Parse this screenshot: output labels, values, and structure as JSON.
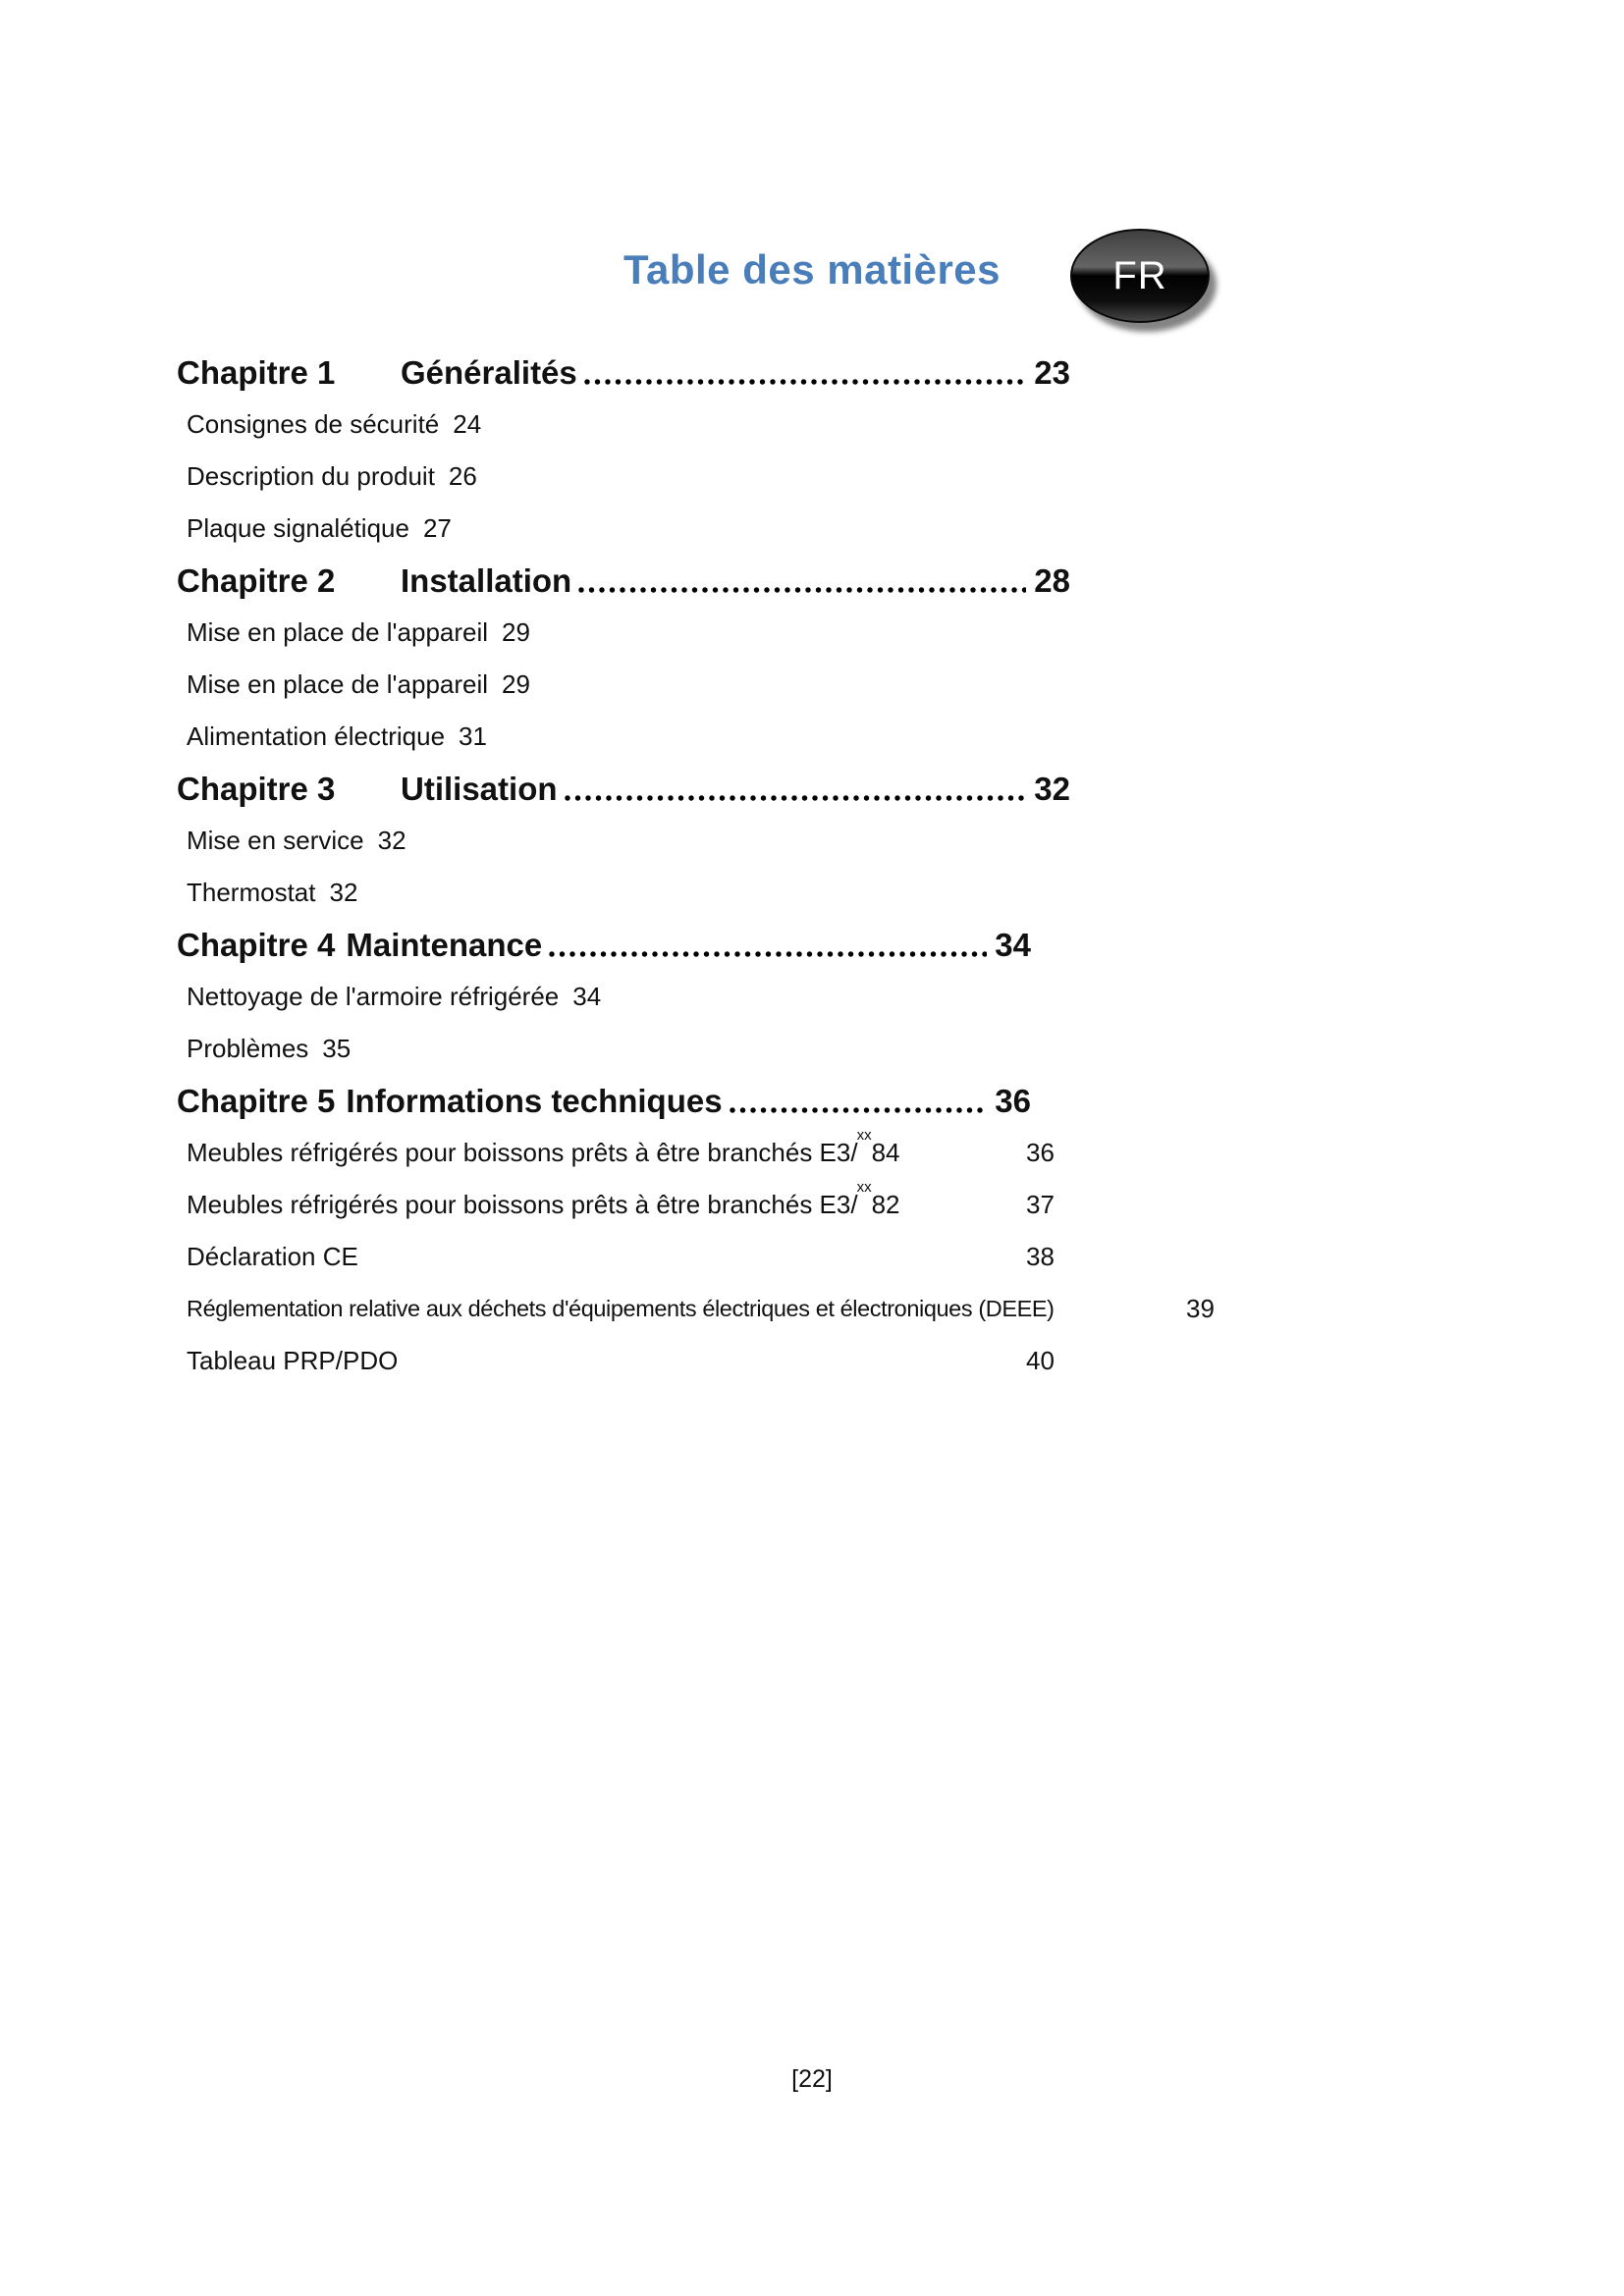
{
  "page": {
    "title": "Table des matières",
    "language_badge": "FR",
    "footer_page_number": "[22]"
  },
  "colors": {
    "title": "#4a7ebb",
    "badge_background": "#111111",
    "badge_text": "#ffffff"
  },
  "toc": {
    "chapters": [
      {
        "label": "Chapitre 1",
        "title": "Généralités",
        "page": "23",
        "items": [
          {
            "label": "Consignes de sécurité",
            "page": "24"
          },
          {
            "label": "Description du produit",
            "page": "26"
          },
          {
            "label": "Plaque signalétique",
            "page": "27"
          }
        ]
      },
      {
        "label": "Chapitre 2",
        "title": "Installation",
        "page": "28",
        "items": [
          {
            "label": "Mise en place de l'appareil",
            "page": "29"
          },
          {
            "label": "Mise en place de l'appareil",
            "page": "29"
          },
          {
            "label": "Alimentation électrique",
            "page": "31"
          }
        ]
      },
      {
        "label": "Chapitre 3",
        "title": "Utilisation",
        "page": "32",
        "items": [
          {
            "label": "Mise en service",
            "page": "32"
          },
          {
            "label": "Thermostat",
            "page": "32"
          }
        ]
      },
      {
        "label": "Chapitre 4",
        "title": "Maintenance",
        "page": "34",
        "items": [
          {
            "label": "Nettoyage de l'armoire réfrigérée",
            "page": "34"
          },
          {
            "label": "Problèmes",
            "page": "35"
          }
        ]
      },
      {
        "label": "Chapitre 5",
        "title": "Informations techniques",
        "page": "36",
        "items": [
          {
            "label_before": "Meubles réfrigérés pour boissons prêts à être branchés E3/",
            "label_sup": "xx",
            "label_after": "84",
            "page": "36"
          },
          {
            "label_before": "Meubles réfrigérés pour boissons prêts à être branchés E3/",
            "label_sup": "xx",
            "label_after": "82",
            "page": "37"
          },
          {
            "label": "Déclaration CE",
            "page": "38"
          },
          {
            "label": "Réglementation relative aux déchets d'équipements électriques et électroniques (DEEE)",
            "page": "39"
          },
          {
            "label": "Tableau PRP/PDO",
            "page": "40"
          }
        ]
      }
    ]
  }
}
